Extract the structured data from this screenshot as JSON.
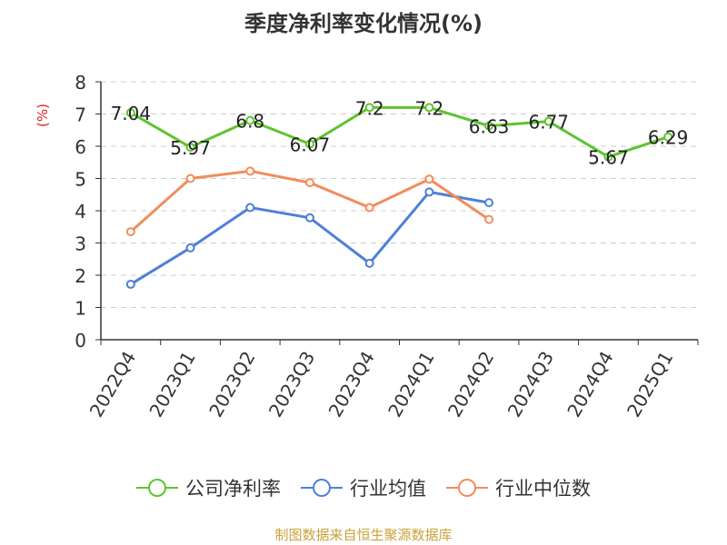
{
  "title": "季度净利率变化情况(%)",
  "source": "制图数据来自恒生聚源数据库",
  "chart_data": {
    "type": "line",
    "title": "季度净利率变化情况(%)",
    "ylabel": "(%)",
    "ylim": [
      0,
      8
    ],
    "yticks": [
      "0",
      "1",
      "2",
      "3",
      "4",
      "5",
      "6",
      "7",
      "8"
    ],
    "categories": [
      "2022Q4",
      "2023Q1",
      "2023Q2",
      "2023Q3",
      "2023Q4",
      "2024Q1",
      "2024Q2",
      "2024Q3",
      "2024Q4",
      "2025Q1"
    ],
    "grid": true,
    "legend_position": "bottom",
    "series": [
      {
        "name": "公司净利率",
        "color": "#5ec42e",
        "labeled": true,
        "values": [
          7.04,
          5.97,
          6.8,
          6.07,
          7.2,
          7.2,
          6.63,
          6.77,
          5.67,
          6.29
        ],
        "labels": [
          "7.04",
          "5.97",
          "6.8",
          "6.07",
          "7.2",
          "7.2",
          "6.63",
          "6.77",
          "5.67",
          "6.29"
        ]
      },
      {
        "name": "行业均值",
        "color": "#4f7fdb",
        "labeled": false,
        "values": [
          1.72,
          2.85,
          4.1,
          3.78,
          2.37,
          4.58,
          4.25,
          null,
          null,
          null
        ]
      },
      {
        "name": "行业中位数",
        "color": "#f28c5b",
        "labeled": false,
        "values": [
          3.35,
          5.0,
          5.23,
          4.87,
          4.1,
          4.98,
          3.73,
          null,
          null,
          null
        ]
      }
    ]
  }
}
